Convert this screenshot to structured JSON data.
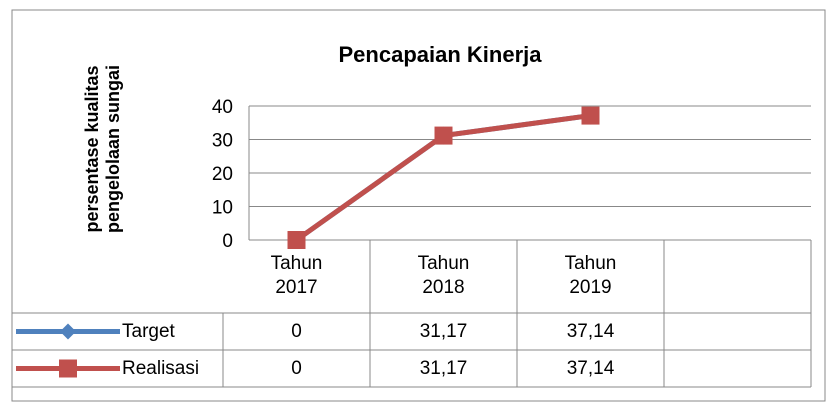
{
  "chart_data": {
    "type": "line",
    "title": "Pencapaian Kinerja",
    "y_label": "persentase kualitas pengelolaan sungai",
    "categories": [
      "Tahun 2017",
      "Tahun 2018",
      "Tahun 2019",
      null
    ],
    "series": [
      {
        "name": "Target",
        "color": "#4f81bd",
        "marker": "diamond",
        "values": [
          0,
          31.17,
          37.14,
          null
        ],
        "value_labels": [
          "0",
          "31,17",
          "37,14",
          null
        ]
      },
      {
        "name": "Realisasi",
        "color": "#c0504d",
        "marker": "square",
        "values": [
          0,
          31.17,
          37.14,
          null
        ],
        "value_labels": [
          "0",
          "31,17",
          "37,14",
          null
        ]
      }
    ],
    "ylim": [
      0,
      40
    ],
    "yticks": [
      0,
      10,
      20,
      30,
      40
    ],
    "grid": true,
    "data_table": true
  }
}
